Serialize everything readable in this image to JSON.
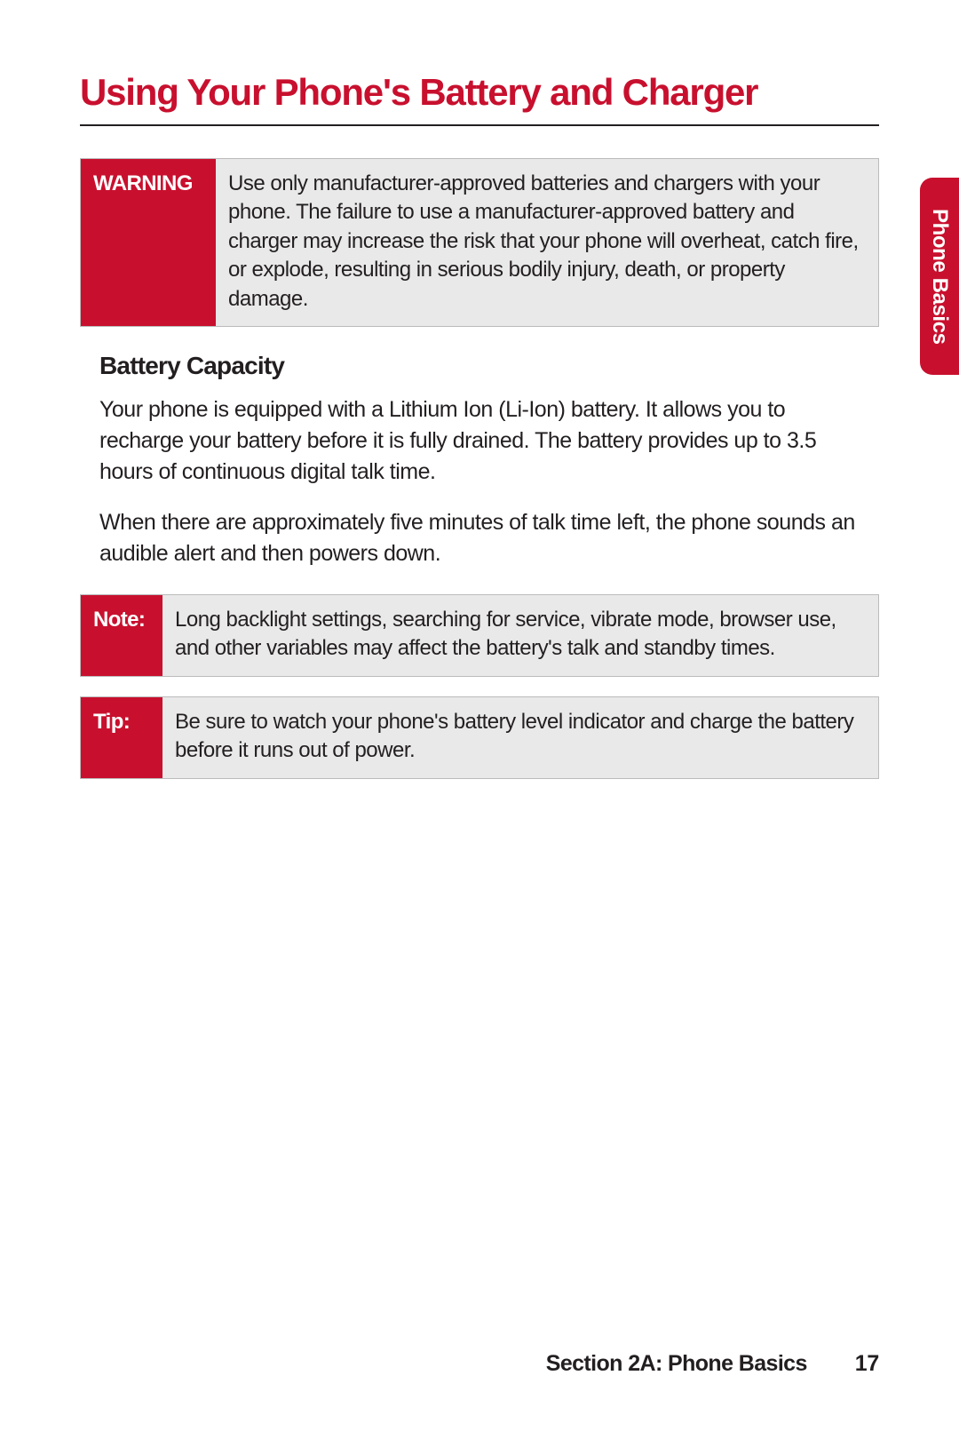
{
  "colors": {
    "accent": "#c8102e",
    "text": "#231f20",
    "callout_bg": "#e9e9e9",
    "callout_border": "#bbbbbb",
    "white": "#ffffff"
  },
  "typography": {
    "title_fontsize_pt": 32,
    "subhead_fontsize_pt": 21,
    "body_fontsize_pt": 19,
    "callout_label_fontsize_pt": 18,
    "font_family": "Helvetica Condensed"
  },
  "title": "Using Your Phone's Battery and Charger",
  "warning": {
    "label": "WARNING",
    "text": "Use only manufacturer-approved batteries and chargers with your phone. The failure to use a manufacturer-approved battery and charger may increase the risk that your phone will overheat, catch fire, or explode, resulting in serious bodily injury, death, or property damage."
  },
  "section": {
    "heading": "Battery Capacity",
    "paragraphs": [
      "Your phone is equipped with a Lithium Ion (Li-Ion) battery. It allows you to recharge your battery before it is fully drained. The battery provides up to 3.5 hours of continuous digital talk time.",
      "When there are approximately five minutes of talk time left, the phone sounds an audible alert and then powers down."
    ]
  },
  "note": {
    "label": "Note:",
    "text": "Long backlight settings, searching for service, vibrate mode, browser use, and other variables may affect the battery's talk and standby times."
  },
  "tip": {
    "label": "Tip:",
    "text": "Be sure to watch your phone's battery level indicator and charge the battery before it runs out of power."
  },
  "side_tab": "Phone Basics",
  "footer": {
    "section_label": "Section 2A: Phone Basics",
    "page_number": "17"
  }
}
